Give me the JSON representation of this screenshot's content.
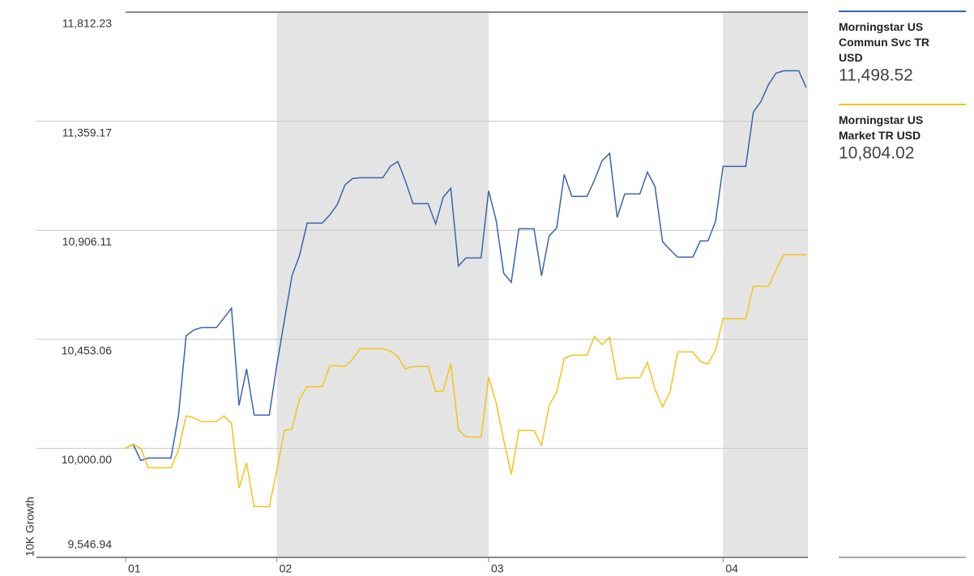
{
  "chart_data": {
    "type": "line",
    "x": [
      0,
      1,
      2,
      3,
      4,
      5,
      6,
      7,
      8,
      9,
      10,
      11,
      12,
      13,
      14,
      15,
      16,
      17,
      18,
      19,
      20,
      21,
      22,
      23,
      24,
      25,
      26,
      27,
      28,
      29,
      30,
      31,
      32,
      33,
      34,
      35,
      36,
      37,
      38,
      39,
      40,
      41,
      42,
      43,
      44,
      45,
      46,
      47,
      48,
      49,
      50,
      51,
      52,
      53,
      54,
      55,
      56,
      57,
      58,
      59,
      60,
      61,
      62,
      63,
      64,
      65,
      66,
      67,
      68,
      69,
      70,
      71,
      72,
      73,
      74,
      75,
      76,
      77,
      78,
      79,
      80,
      81,
      82,
      83,
      84,
      85,
      86,
      87,
      88,
      89,
      90
    ],
    "xlim": [
      0,
      90
    ],
    "xticks": [
      {
        "value": 0,
        "label": "01"
      },
      {
        "value": 20,
        "label": "02"
      },
      {
        "value": 48,
        "label": "03"
      },
      {
        "value": 79,
        "label": "04"
      }
    ],
    "ylim": [
      9546.94,
      11812.23
    ],
    "yticks": [
      {
        "value": 9546.94,
        "label": "9,546.94"
      },
      {
        "value": 10000,
        "label": "10,000.00"
      },
      {
        "value": 10453.06,
        "label": "10,453.06"
      },
      {
        "value": 10906.11,
        "label": "10,906.11"
      },
      {
        "value": 11359.17,
        "label": "11,359.17"
      },
      {
        "value": 11812.23,
        "label": "11,812.23"
      }
    ],
    "ylabel": "10K Growth",
    "grid": true,
    "shading": "alternate",
    "series": [
      {
        "name": "Morningstar US Commun Svc TR USD",
        "color": "#3a63ad",
        "legend_value": "11,498.52",
        "values": [
          10000,
          10016.8,
          9949.5,
          9959.6,
          9959.6,
          9959.6,
          9959.6,
          10137.4,
          10467.2,
          10491.4,
          10501.5,
          10501.5,
          10501.5,
          10541.9,
          10582.3,
          10178.4,
          10329.9,
          10138,
          10138,
          10138,
          10346.7,
          10531.8,
          10717,
          10801.1,
          10935.7,
          10935.7,
          10935.7,
          10969.4,
          11013.2,
          11093.9,
          11120.9,
          11124.2,
          11124.2,
          11124.2,
          11124.2,
          11171.4,
          11191.6,
          11110.8,
          11016.5,
          11016.5,
          11016.5,
          10932.4,
          11043.5,
          11080.5,
          10757.4,
          10791,
          10791,
          10791,
          11070.4,
          10945.8,
          10727.1,
          10690,
          10912.2,
          10912.2,
          10912.2,
          10717,
          10881.9,
          10915.6,
          11137.7,
          11046.8,
          11046.8,
          11046.8,
          11114.2,
          11194.9,
          11225.2,
          10959.3,
          11056.9,
          11056.9,
          11056.9,
          11147.8,
          11087.2,
          10858.3,
          10824.7,
          10794.4,
          10794.4,
          10794.4,
          10861.7,
          10861.7,
          10942.5,
          11171.4,
          11171.4,
          11171.4,
          11171.4,
          11396.9,
          11440.6,
          11511.3,
          11558.5,
          11568.6,
          11568.6,
          11568.6,
          11498.52
        ]
      },
      {
        "name": "Morningstar US Market TR USD",
        "color": "#f2c318",
        "legend_value": "10,804.02",
        "values": [
          10000,
          10016.8,
          10000,
          9919.2,
          9919.2,
          9919.2,
          9919.2,
          9993.3,
          10134.6,
          10127.9,
          10111.1,
          10111.1,
          10111.1,
          10134.6,
          10104.3,
          9835.1,
          9939.4,
          9757.6,
          9757.6,
          9757.6,
          9909.1,
          10074.1,
          10080.8,
          10205.3,
          10255.8,
          10255.8,
          10255.8,
          10343.3,
          10343.3,
          10340,
          10370.3,
          10414,
          10414,
          10414,
          10414,
          10403.9,
          10380.4,
          10329.9,
          10340,
          10340,
          10340,
          10235.6,
          10239,
          10353.4,
          10077.4,
          10047.1,
          10047.1,
          10047.1,
          10296.2,
          10188.5,
          10033.7,
          9892.3,
          10074.1,
          10074.1,
          10074.1,
          10013.5,
          10178.4,
          10232.3,
          10373.6,
          10387.1,
          10387.1,
          10387.1,
          10464.5,
          10430.8,
          10461.1,
          10286.1,
          10292.8,
          10292.8,
          10292.8,
          10356.8,
          10245.7,
          10171.7,
          10235.6,
          10400.6,
          10400.6,
          10400.6,
          10360.2,
          10350.1,
          10407.3,
          10538.6,
          10538.6,
          10538.6,
          10538.6,
          10673.2,
          10673.2,
          10673.2,
          10740.5,
          10804.02,
          10804.02,
          10804.02,
          10804.02
        ]
      }
    ]
  }
}
